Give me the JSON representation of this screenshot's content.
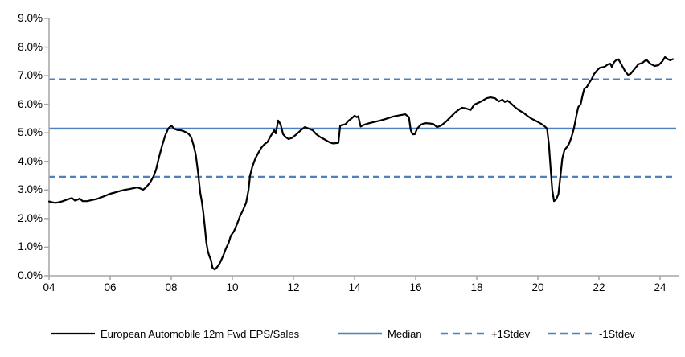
{
  "chart_data": {
    "type": "line",
    "title": "",
    "xlabel": "",
    "ylabel": "",
    "x_axis": {
      "min": 2004,
      "max": 2024.6,
      "tick_step": 2,
      "tick_labels": [
        "04",
        "06",
        "08",
        "10",
        "12",
        "14",
        "16",
        "18",
        "20",
        "22",
        "24"
      ]
    },
    "y_axis": {
      "min": 0,
      "max": 9,
      "tick_step": 1,
      "format": "percent",
      "tick_labels": [
        "0.0%",
        "1.0%",
        "2.0%",
        "3.0%",
        "4.0%",
        "5.0%",
        "6.0%",
        "7.0%",
        "8.0%",
        "9.0%"
      ]
    },
    "grid": "off",
    "legend_position": "bottom",
    "series": [
      {
        "name": "European Automobile 12m Fwd EPS/Sales",
        "color": "#000000",
        "style": "solid",
        "unit": "%",
        "points": [
          [
            2004.0,
            2.6
          ],
          [
            2004.1,
            2.57
          ],
          [
            2004.2,
            2.55
          ],
          [
            2004.33,
            2.57
          ],
          [
            2004.45,
            2.61
          ],
          [
            2004.6,
            2.67
          ],
          [
            2004.75,
            2.72
          ],
          [
            2004.85,
            2.63
          ],
          [
            2004.95,
            2.67
          ],
          [
            2005.0,
            2.7
          ],
          [
            2005.1,
            2.61
          ],
          [
            2005.25,
            2.61
          ],
          [
            2005.4,
            2.65
          ],
          [
            2005.55,
            2.68
          ],
          [
            2005.7,
            2.74
          ],
          [
            2005.85,
            2.8
          ],
          [
            2006.0,
            2.87
          ],
          [
            2006.15,
            2.91
          ],
          [
            2006.3,
            2.96
          ],
          [
            2006.45,
            3.0
          ],
          [
            2006.6,
            3.03
          ],
          [
            2006.75,
            3.06
          ],
          [
            2006.9,
            3.09
          ],
          [
            2007.0,
            3.05
          ],
          [
            2007.08,
            3.01
          ],
          [
            2007.17,
            3.09
          ],
          [
            2007.3,
            3.25
          ],
          [
            2007.42,
            3.48
          ],
          [
            2007.5,
            3.7
          ],
          [
            2007.6,
            4.15
          ],
          [
            2007.7,
            4.55
          ],
          [
            2007.8,
            4.9
          ],
          [
            2007.9,
            5.15
          ],
          [
            2008.0,
            5.25
          ],
          [
            2008.1,
            5.14
          ],
          [
            2008.2,
            5.1
          ],
          [
            2008.3,
            5.09
          ],
          [
            2008.4,
            5.06
          ],
          [
            2008.5,
            5.01
          ],
          [
            2008.58,
            4.95
          ],
          [
            2008.65,
            4.85
          ],
          [
            2008.72,
            4.6
          ],
          [
            2008.8,
            4.25
          ],
          [
            2008.88,
            3.6
          ],
          [
            2008.95,
            2.9
          ],
          [
            2009.0,
            2.6
          ],
          [
            2009.05,
            2.2
          ],
          [
            2009.1,
            1.7
          ],
          [
            2009.15,
            1.15
          ],
          [
            2009.2,
            0.85
          ],
          [
            2009.25,
            0.68
          ],
          [
            2009.3,
            0.55
          ],
          [
            2009.35,
            0.28
          ],
          [
            2009.42,
            0.22
          ],
          [
            2009.5,
            0.3
          ],
          [
            2009.6,
            0.46
          ],
          [
            2009.7,
            0.7
          ],
          [
            2009.8,
            0.98
          ],
          [
            2009.88,
            1.15
          ],
          [
            2009.95,
            1.4
          ],
          [
            2010.05,
            1.55
          ],
          [
            2010.15,
            1.8
          ],
          [
            2010.25,
            2.08
          ],
          [
            2010.35,
            2.3
          ],
          [
            2010.45,
            2.55
          ],
          [
            2010.53,
            3.0
          ],
          [
            2010.58,
            3.5
          ],
          [
            2010.65,
            3.8
          ],
          [
            2010.75,
            4.1
          ],
          [
            2010.85,
            4.3
          ],
          [
            2010.95,
            4.48
          ],
          [
            2011.05,
            4.6
          ],
          [
            2011.15,
            4.68
          ],
          [
            2011.25,
            4.88
          ],
          [
            2011.37,
            5.09
          ],
          [
            2011.42,
            4.98
          ],
          [
            2011.5,
            5.43
          ],
          [
            2011.58,
            5.3
          ],
          [
            2011.66,
            4.95
          ],
          [
            2011.75,
            4.85
          ],
          [
            2011.84,
            4.78
          ],
          [
            2011.95,
            4.82
          ],
          [
            2012.1,
            4.95
          ],
          [
            2012.24,
            5.09
          ],
          [
            2012.37,
            5.2
          ],
          [
            2012.5,
            5.15
          ],
          [
            2012.63,
            5.09
          ],
          [
            2012.75,
            4.95
          ],
          [
            2012.88,
            4.85
          ],
          [
            2013.0,
            4.78
          ],
          [
            2013.1,
            4.72
          ],
          [
            2013.2,
            4.66
          ],
          [
            2013.3,
            4.63
          ],
          [
            2013.4,
            4.64
          ],
          [
            2013.47,
            4.65
          ],
          [
            2013.53,
            5.25
          ],
          [
            2013.6,
            5.28
          ],
          [
            2013.7,
            5.3
          ],
          [
            2013.8,
            5.42
          ],
          [
            2013.9,
            5.5
          ],
          [
            2014.0,
            5.6
          ],
          [
            2014.07,
            5.55
          ],
          [
            2014.12,
            5.58
          ],
          [
            2014.2,
            5.22
          ],
          [
            2014.3,
            5.28
          ],
          [
            2014.45,
            5.33
          ],
          [
            2014.6,
            5.37
          ],
          [
            2014.8,
            5.42
          ],
          [
            2015.0,
            5.48
          ],
          [
            2015.26,
            5.57
          ],
          [
            2015.5,
            5.62
          ],
          [
            2015.66,
            5.65
          ],
          [
            2015.78,
            5.55
          ],
          [
            2015.84,
            5.09
          ],
          [
            2015.9,
            4.95
          ],
          [
            2015.97,
            4.95
          ],
          [
            2016.05,
            5.15
          ],
          [
            2016.18,
            5.29
          ],
          [
            2016.3,
            5.34
          ],
          [
            2016.45,
            5.33
          ],
          [
            2016.58,
            5.31
          ],
          [
            2016.7,
            5.2
          ],
          [
            2016.84,
            5.26
          ],
          [
            2017.0,
            5.4
          ],
          [
            2017.15,
            5.56
          ],
          [
            2017.3,
            5.72
          ],
          [
            2017.42,
            5.82
          ],
          [
            2017.52,
            5.88
          ],
          [
            2017.66,
            5.85
          ],
          [
            2017.8,
            5.8
          ],
          [
            2017.92,
            5.99
          ],
          [
            2018.05,
            6.05
          ],
          [
            2018.2,
            6.13
          ],
          [
            2018.32,
            6.21
          ],
          [
            2018.45,
            6.24
          ],
          [
            2018.6,
            6.21
          ],
          [
            2018.72,
            6.1
          ],
          [
            2018.84,
            6.16
          ],
          [
            2018.92,
            6.08
          ],
          [
            2019.0,
            6.13
          ],
          [
            2019.1,
            6.05
          ],
          [
            2019.25,
            5.9
          ],
          [
            2019.4,
            5.78
          ],
          [
            2019.53,
            5.7
          ],
          [
            2019.65,
            5.6
          ],
          [
            2019.78,
            5.5
          ],
          [
            2019.9,
            5.44
          ],
          [
            2020.0,
            5.38
          ],
          [
            2020.1,
            5.32
          ],
          [
            2020.2,
            5.25
          ],
          [
            2020.3,
            5.15
          ],
          [
            2020.36,
            4.6
          ],
          [
            2020.42,
            3.7
          ],
          [
            2020.47,
            3.0
          ],
          [
            2020.53,
            2.61
          ],
          [
            2020.6,
            2.68
          ],
          [
            2020.67,
            2.85
          ],
          [
            2020.74,
            3.5
          ],
          [
            2020.8,
            4.1
          ],
          [
            2020.87,
            4.4
          ],
          [
            2020.95,
            4.5
          ],
          [
            2021.02,
            4.62
          ],
          [
            2021.1,
            4.85
          ],
          [
            2021.18,
            5.15
          ],
          [
            2021.26,
            5.6
          ],
          [
            2021.32,
            5.9
          ],
          [
            2021.4,
            6.0
          ],
          [
            2021.46,
            6.3
          ],
          [
            2021.52,
            6.55
          ],
          [
            2021.6,
            6.6
          ],
          [
            2021.68,
            6.75
          ],
          [
            2021.76,
            6.88
          ],
          [
            2021.84,
            7.06
          ],
          [
            2021.95,
            7.2
          ],
          [
            2022.03,
            7.28
          ],
          [
            2022.18,
            7.31
          ],
          [
            2022.3,
            7.4
          ],
          [
            2022.37,
            7.42
          ],
          [
            2022.42,
            7.31
          ],
          [
            2022.5,
            7.48
          ],
          [
            2022.56,
            7.54
          ],
          [
            2022.64,
            7.57
          ],
          [
            2022.76,
            7.34
          ],
          [
            2022.85,
            7.17
          ],
          [
            2022.95,
            7.03
          ],
          [
            2023.03,
            7.06
          ],
          [
            2023.16,
            7.23
          ],
          [
            2023.29,
            7.4
          ],
          [
            2023.42,
            7.45
          ],
          [
            2023.55,
            7.56
          ],
          [
            2023.68,
            7.42
          ],
          [
            2023.82,
            7.34
          ],
          [
            2023.95,
            7.37
          ],
          [
            2024.08,
            7.51
          ],
          [
            2024.16,
            7.65
          ],
          [
            2024.25,
            7.58
          ],
          [
            2024.33,
            7.54
          ],
          [
            2024.42,
            7.58
          ]
        ]
      }
    ],
    "reference_lines": [
      {
        "key": "median",
        "name": "Median",
        "value": 5.15,
        "color": "#4F81BD",
        "style": "solid"
      },
      {
        "key": "plus-1stdev",
        "name": "+1Stdev",
        "value": 6.87,
        "color": "#4F81BD",
        "style": "dashed"
      },
      {
        "key": "minus-1stdev",
        "name": "-1Stdev",
        "value": 3.46,
        "color": "#4F81BD",
        "style": "dashed"
      }
    ],
    "legend": [
      {
        "label": "European Automobile 12m Fwd EPS/Sales",
        "color": "#000000",
        "style": "solid"
      },
      {
        "label": "Median",
        "color": "#4F81BD",
        "style": "solid"
      },
      {
        "label": "+1Stdev",
        "color": "#4F81BD",
        "style": "dashed"
      },
      {
        "label": "-1Stdev",
        "color": "#4F81BD",
        "style": "dashed"
      }
    ],
    "colors": {
      "series": "#000000",
      "stat_lines": "#4F81BD",
      "axis": "#A6A6A6",
      "text": "#000000"
    }
  }
}
